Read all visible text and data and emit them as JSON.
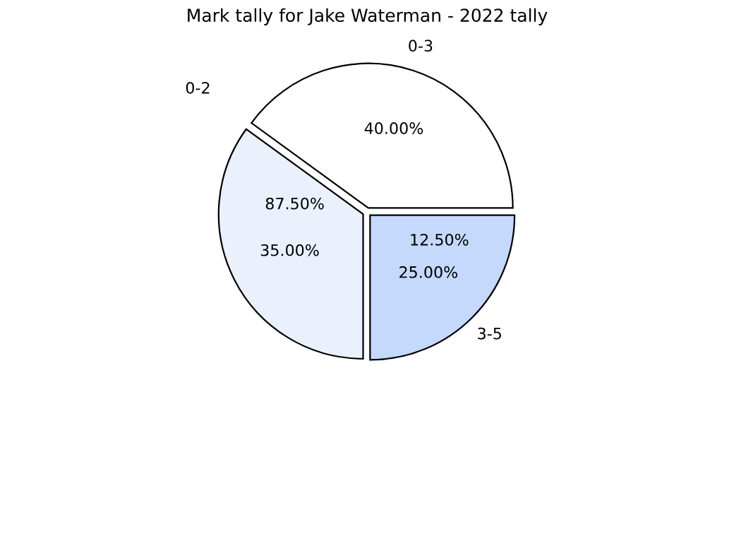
{
  "chart_data": {
    "type": "pie",
    "title": "Mark tally for Jake Waterman - 2022 tally",
    "categories": [
      "0-3",
      null,
      "3-5"
    ],
    "values": [
      40,
      35,
      25
    ],
    "colors": [
      "#ffffff",
      "#eaf1fd",
      "#c5d9fd"
    ],
    "value_labels": [
      "40.00%",
      "35.00%",
      "25.00%"
    ],
    "annotations": [
      "0-2",
      "87.50%",
      "12.50%"
    ],
    "legend": false
  }
}
